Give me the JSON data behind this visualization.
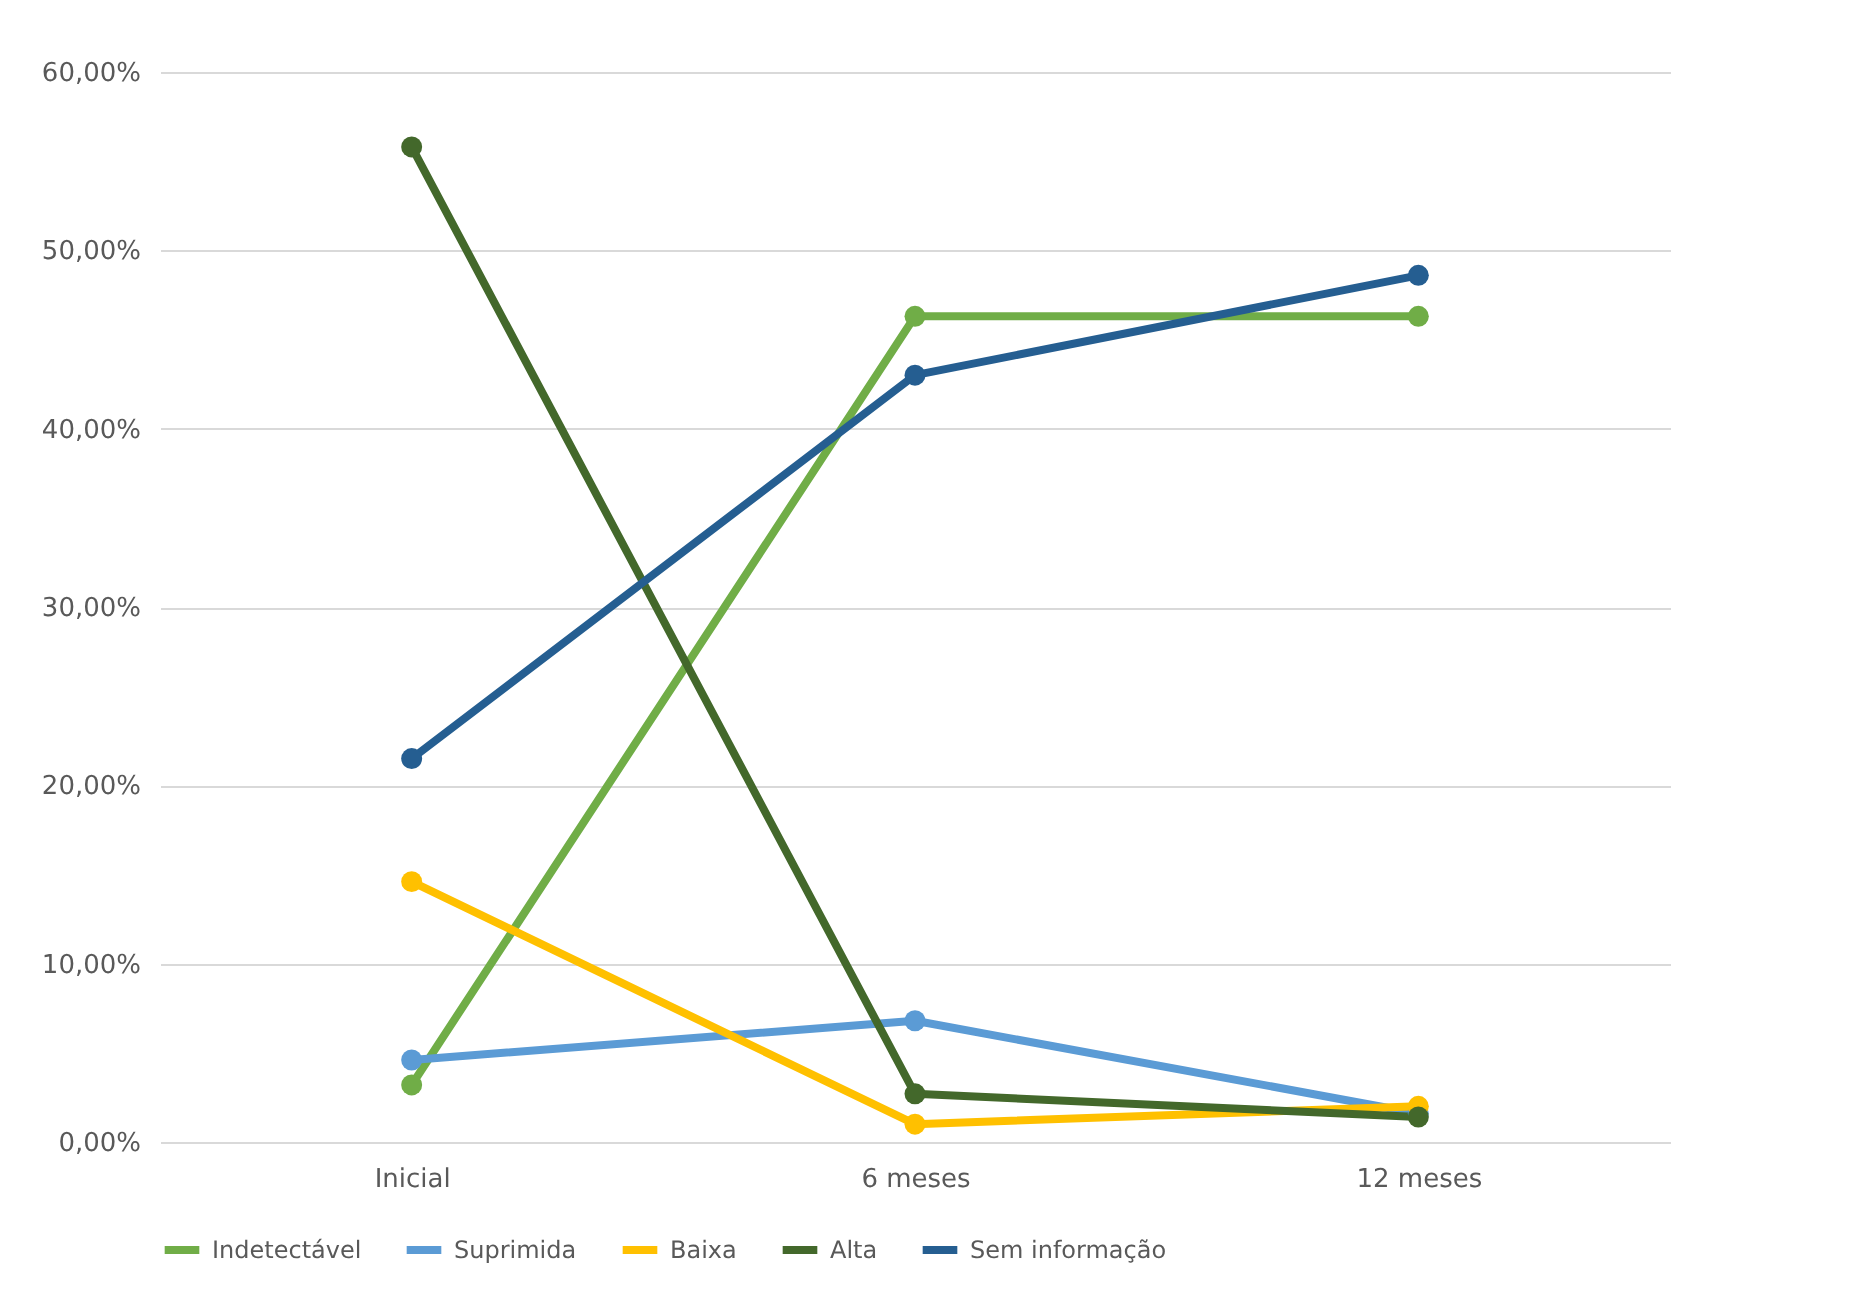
{
  "chart_data": {
    "type": "line",
    "categories": [
      "Inicial",
      "6 meses",
      "12 meses"
    ],
    "series": [
      {
        "name": "Indetectável",
        "color": "#70ad47",
        "values": [
          3.2,
          46.3,
          46.3
        ]
      },
      {
        "name": "Suprimida",
        "color": "#5b9bd5",
        "values": [
          4.6,
          6.8,
          1.6
        ]
      },
      {
        "name": "Baixa",
        "color": "#ffc000",
        "values": [
          14.6,
          1.0,
          2.0
        ]
      },
      {
        "name": "Alta",
        "color": "#43682b",
        "values": [
          55.8,
          2.7,
          1.4
        ]
      },
      {
        "name": "Sem informação",
        "color": "#255e91",
        "values": [
          21.5,
          43.0,
          48.6
        ]
      }
    ],
    "ylim": [
      0,
      60
    ],
    "yticks": [
      {
        "value": 0,
        "label": "0,00%"
      },
      {
        "value": 10,
        "label": "10,00%"
      },
      {
        "value": 20,
        "label": "20,00%"
      },
      {
        "value": 30,
        "label": "30,00%"
      },
      {
        "value": 40,
        "label": "40,00%"
      },
      {
        "value": 50,
        "label": "50,00%"
      },
      {
        "value": 60,
        "label": "60,00%"
      }
    ],
    "grid": "y",
    "legend": "bottom",
    "marker": "circle",
    "line_style": "solid"
  }
}
